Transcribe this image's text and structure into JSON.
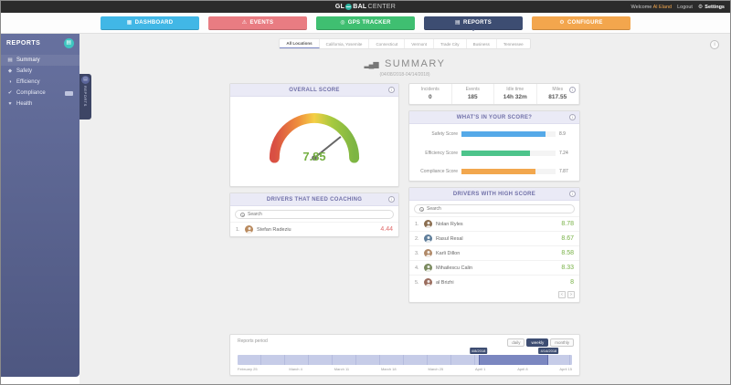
{
  "icons": {
    "gear": "⚙",
    "dashboard": "▦",
    "events": "⚠",
    "gps": "◎",
    "reports": "▤",
    "configure": "⚙",
    "chart": "▂▄▆",
    "menu_summary": "▤",
    "menu_safety": "◆",
    "menu_efficiency": "◑",
    "menu_compliance": "✔",
    "menu_health": "♥"
  },
  "colors": {
    "accent_navy": "#3d4d72",
    "score_green": "#76b043",
    "score_red": "#e06b6b"
  },
  "topbar": {
    "logo": {
      "part1": "GL",
      "part2": "BAL",
      "part3": "CENTER"
    },
    "welcome_prefix": "Welcome",
    "user": "Al Eland",
    "logout": "Logout",
    "settings": "Settings"
  },
  "nav": {
    "items": [
      {
        "label": "DASHBOARD"
      },
      {
        "label": "EVENTS"
      },
      {
        "label": "GPS TRACKER"
      },
      {
        "label": "REPORTS"
      },
      {
        "label": "CONFIGURE"
      }
    ]
  },
  "sidebar": {
    "title": "REPORTS",
    "handle": "REPORTS",
    "items": [
      {
        "label": "Summary"
      },
      {
        "label": "Safety"
      },
      {
        "label": "Efficiency"
      },
      {
        "label": "Compliance"
      },
      {
        "label": "Health"
      }
    ]
  },
  "tabs": {
    "items": [
      {
        "label": "All Locations"
      },
      {
        "label": "California, Yosemite"
      },
      {
        "label": "Connecticut"
      },
      {
        "label": "Vermont"
      },
      {
        "label": "Trade City"
      },
      {
        "label": "Business"
      },
      {
        "label": "Tennessee"
      }
    ]
  },
  "summary": {
    "title": "SUMMARY",
    "date_range": "(04/08/2018-04/14/2018)"
  },
  "overall": {
    "header": "OVERALL SCORE",
    "value": 7.85,
    "display": "7.85"
  },
  "stats": {
    "columns": [
      {
        "label": "Incidents",
        "value": "0"
      },
      {
        "label": "Events",
        "value": "185"
      },
      {
        "label": "Idle time",
        "value": "14h 32m"
      },
      {
        "label": "Miles",
        "value": "817.55"
      }
    ]
  },
  "score_breakdown": {
    "header": "WHAT'S IN YOUR SCORE?",
    "bars": [
      {
        "label": "Safety Score",
        "value": 8.9,
        "display": "8.9",
        "color": "#55a9e8"
      },
      {
        "label": "Efficiency Score",
        "value": 7.24,
        "display": "7.24",
        "color": "#4dc48b"
      },
      {
        "label": "Compliance Score",
        "value": 7.87,
        "display": "7.87",
        "color": "#f2a74e"
      }
    ]
  },
  "coaching": {
    "header": "DRIVERS THAT NEED COACHING",
    "search_placeholder": "Search",
    "rows": [
      {
        "rank": "1.",
        "name": "Stefan Radeziu",
        "score": "4.44",
        "avatar_color": "#b98a5e"
      }
    ]
  },
  "high_score": {
    "header": "DRIVERS WITH HIGH SCORE",
    "search_placeholder": "Search",
    "rows": [
      {
        "rank": "1.",
        "name": "Nolan Ryles",
        "score": "8.78",
        "avatar_color": "#8a6d4f"
      },
      {
        "rank": "2.",
        "name": "Rasul Resal",
        "score": "8.67",
        "avatar_color": "#5e7d9a"
      },
      {
        "rank": "3.",
        "name": "Karli Dillon",
        "score": "8.58",
        "avatar_color": "#b08968"
      },
      {
        "rank": "4.",
        "name": "Mihailescu Calin",
        "score": "8.33",
        "avatar_color": "#7a8a5e"
      },
      {
        "rank": "5.",
        "name": "al Brizhi",
        "score": "8",
        "avatar_color": "#9a6d5e"
      }
    ],
    "pagination": {
      "prev": "‹",
      "next": "›"
    }
  },
  "period": {
    "title": "Reports period",
    "buttons": [
      {
        "label": "daily"
      },
      {
        "label": "weekly"
      },
      {
        "label": "monthly"
      }
    ],
    "selection": {
      "start_label": "4/8/2018",
      "end_label": "4/14/2018",
      "left_pct": 72,
      "width_pct": 21
    },
    "ticks": [
      "February 25",
      "March 4",
      "March 11",
      "March 18",
      "March 25",
      "April 1",
      "April 8",
      "April 15"
    ]
  }
}
